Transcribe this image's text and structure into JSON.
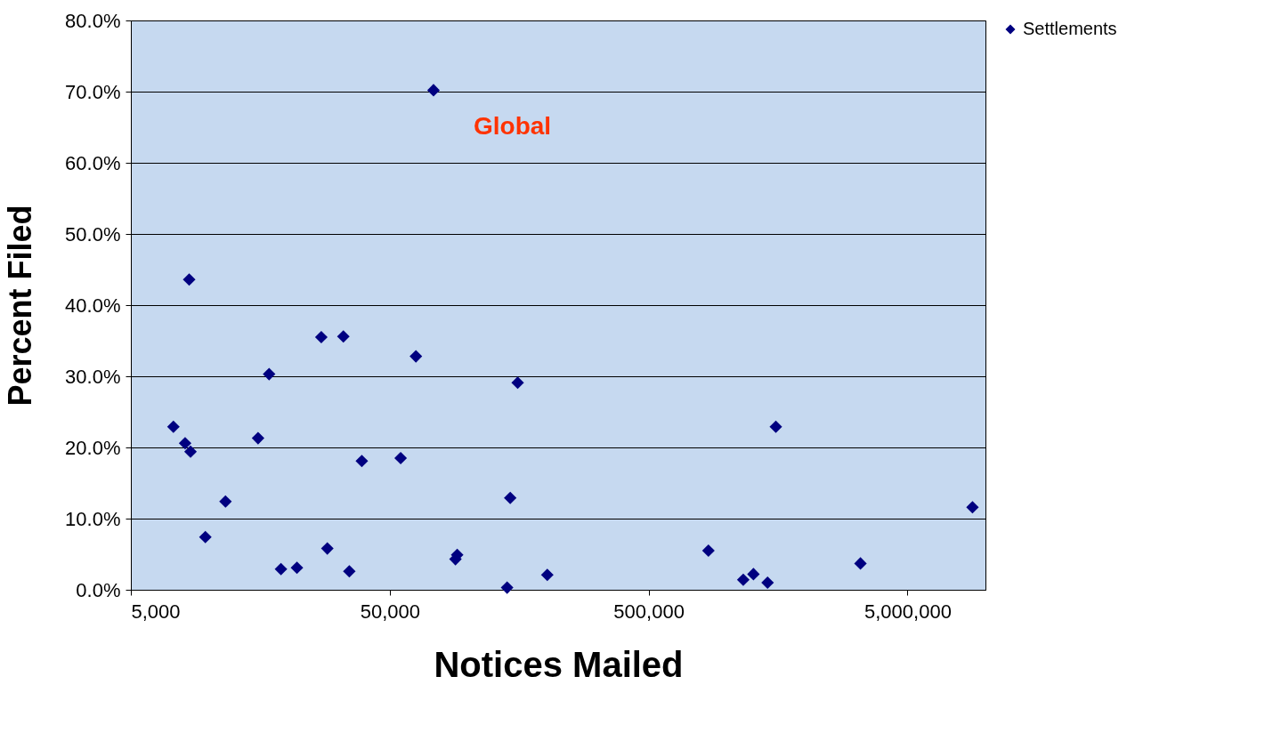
{
  "chart_data": {
    "type": "scatter",
    "xlabel": "Notices Mailed",
    "ylabel": "Percent Filed",
    "log": "x",
    "grid": "y",
    "legend": "right",
    "marker": "diamond",
    "xlim": [
      5000,
      10000000
    ],
    "xticks": [
      {
        "value": 5000,
        "label": "5,000"
      },
      {
        "value": 50000,
        "label": "50,000"
      },
      {
        "value": 500000,
        "label": "500,000"
      },
      {
        "value": 5000000,
        "label": "5,000,000"
      }
    ],
    "ylim": [
      0,
      80
    ],
    "yticks": [
      {
        "value": 0,
        "label": "0.0%"
      },
      {
        "value": 10,
        "label": "10.0%"
      },
      {
        "value": 20,
        "label": "20.0%"
      },
      {
        "value": 30,
        "label": "30.0%"
      },
      {
        "value": 40,
        "label": "40.0%"
      },
      {
        "value": 50,
        "label": "50.0%"
      },
      {
        "value": 60,
        "label": "60.0%"
      },
      {
        "value": 70,
        "label": "70.0%"
      },
      {
        "value": 80,
        "label": "80.0%"
      }
    ],
    "x": [
      7300,
      8100,
      8400,
      8500,
      9700,
      11600,
      15500,
      17100,
      19000,
      21900,
      27200,
      28700,
      33100,
      34900,
      39000,
      55100,
      63100,
      73800,
      89700,
      91100,
      142000,
      146000,
      156000,
      203000,
      851000,
      1160000,
      1270000,
      1440000,
      1550000,
      3290000,
      8910000
    ],
    "series": [
      {
        "name": "Settlements",
        "color": "#000080",
        "values": [
          22.9,
          20.6,
          43.6,
          19.4,
          7.4,
          12.4,
          21.3,
          30.3,
          2.9,
          3.1,
          35.5,
          5.8,
          35.6,
          2.6,
          18.1,
          18.5,
          32.8,
          70.2,
          4.3,
          4.9,
          0.3,
          12.9,
          29.1,
          2.1,
          5.5,
          1.4,
          2.2,
          1.0,
          22.9,
          3.7,
          11.6
        ]
      }
    ],
    "annotations": [
      {
        "text": "Global",
        "x": 73800,
        "y": 70.2
      }
    ]
  }
}
